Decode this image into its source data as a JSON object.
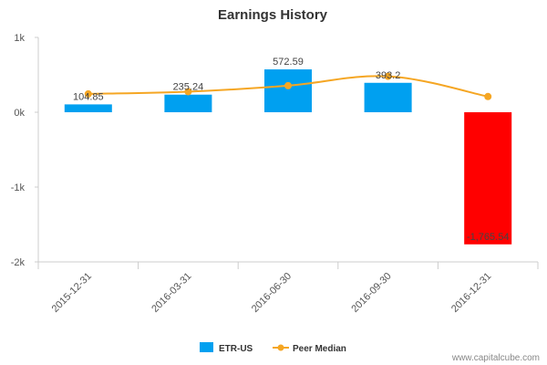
{
  "chart_data": {
    "type": "bar",
    "title": "Earnings History",
    "xlabel": "",
    "ylabel": "",
    "categories": [
      "2015-12-31",
      "2016-03-31",
      "2016-06-30",
      "2016-09-30",
      "2016-12-31"
    ],
    "ylim": [
      -2000,
      1000
    ],
    "yticks": [
      1000,
      0,
      -1000,
      -2000
    ],
    "ytick_labels": [
      "1k",
      "0k",
      "-1k",
      "-2k"
    ],
    "series": [
      {
        "name": "ETR-US",
        "kind": "bar",
        "values": [
          104.85,
          235.24,
          572.59,
          393.2,
          -1765.54
        ],
        "data_labels": [
          "104.85",
          "235.24",
          "572.59",
          "393.2",
          "-1,765.54"
        ],
        "colors": [
          "#00a0f0",
          "#00a0f0",
          "#00a0f0",
          "#00a0f0",
          "#ff0000"
        ]
      },
      {
        "name": "Peer Median",
        "kind": "line",
        "values": [
          245,
          275,
          355,
          480,
          210
        ],
        "color": "#f5a623"
      }
    ],
    "legend_position": "bottom-center",
    "grid": false
  },
  "watermark": "www.capitalcube.com"
}
